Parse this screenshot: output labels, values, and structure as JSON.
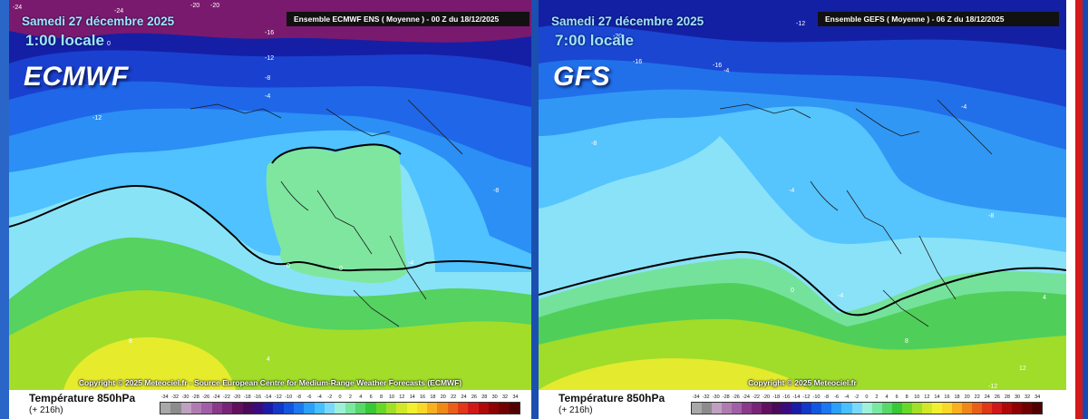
{
  "panels": [
    {
      "id": "ecmwf",
      "model": "ECMWF",
      "date": "Samedi 27 décembre 2025",
      "time": "1:00 locale",
      "banner": "Ensemble ECMWF ENS  ( Moyenne )  -  00 Z du 18/12/2025",
      "copyright": "Copyright © 2025 Meteociel.fr - Source European Centre for Medium-Range Weather Forecasts (ECMWF)",
      "legend_title": "Température 850hPa",
      "legend_sub": "(+ 216h)",
      "contour_labels": [
        "-24",
        "-24",
        "-20",
        "-20",
        "-16",
        "-12",
        "-8",
        "-4",
        "-12",
        "0",
        "-8",
        "0",
        "8",
        "4",
        "0",
        "-4"
      ]
    },
    {
      "id": "gfs",
      "model": "GFS",
      "date": "Samedi 27 décembre 2025",
      "time": "7:00 locale",
      "banner": "Ensemble GEFS  ( Moyenne )  -  06 Z du 18/12/2025",
      "copyright": "Copyright © 2025 Meteociel.fr",
      "legend_title": "Température 850hPa",
      "legend_sub": "(+ 216h)",
      "contour_labels": [
        "-20",
        "-12",
        "-16",
        "-16",
        "-8",
        "-4",
        "-4",
        "-8",
        "-4",
        "0",
        "-4",
        "4",
        "8",
        "12",
        "-12"
      ]
    }
  ],
  "scale_labels": [
    "-34",
    "-32",
    "-30",
    "-28",
    "-26",
    "-24",
    "-22",
    "-20",
    "-18",
    "-16",
    "-14",
    "-12",
    "-10",
    "-8",
    "-6",
    "-4",
    "-2",
    "0",
    "2",
    "4",
    "6",
    "8",
    "10",
    "12",
    "14",
    "16",
    "18",
    "20",
    "22",
    "24",
    "26",
    "28",
    "30",
    "32",
    "34"
  ],
  "scale_colors": [
    "#a8a8a8",
    "#8c8c8c",
    "#bfa0c0",
    "#b07cb0",
    "#a060a8",
    "#8a3a8a",
    "#782478",
    "#62105e",
    "#4a0a5a",
    "#3a0a80",
    "#1a1ca8",
    "#1238c8",
    "#1256e0",
    "#1a78f0",
    "#2aa0f8",
    "#46c0ff",
    "#7ad8ff",
    "#9ef0d8",
    "#7ae8a0",
    "#58d868",
    "#38c838",
    "#68d828",
    "#a0e028",
    "#d0e828",
    "#f0f030",
    "#f8d828",
    "#f8b020",
    "#f08818",
    "#e86018",
    "#e03818",
    "#d01818",
    "#b00808",
    "#900000",
    "#700000",
    "#500000"
  ],
  "map_colors": {
    "ecmwf": {
      "purple": "#7a1a6e",
      "deep": "#151fa6",
      "blue1": "#1a40cf",
      "blue2": "#1f67e8",
      "blue3": "#2b8ff5",
      "cyan": "#4fc2ff",
      "aqua": "#89e3f7",
      "greenzone": "#7fe6a0",
      "green": "#55d25f",
      "lime": "#a2dd2a",
      "yellow": "#e6ec2c"
    },
    "gfs": {
      "deep": "#1420a4",
      "blue1": "#1a46d2",
      "blue2": "#2170ea",
      "blue3": "#3197f5",
      "cyan": "#56c4fd",
      "aqua": "#8ae2f8",
      "greenzone": "#74e29a",
      "green": "#4fcf5a",
      "lime": "#a0dc2a",
      "yellow": "#e4ea2e"
    }
  }
}
